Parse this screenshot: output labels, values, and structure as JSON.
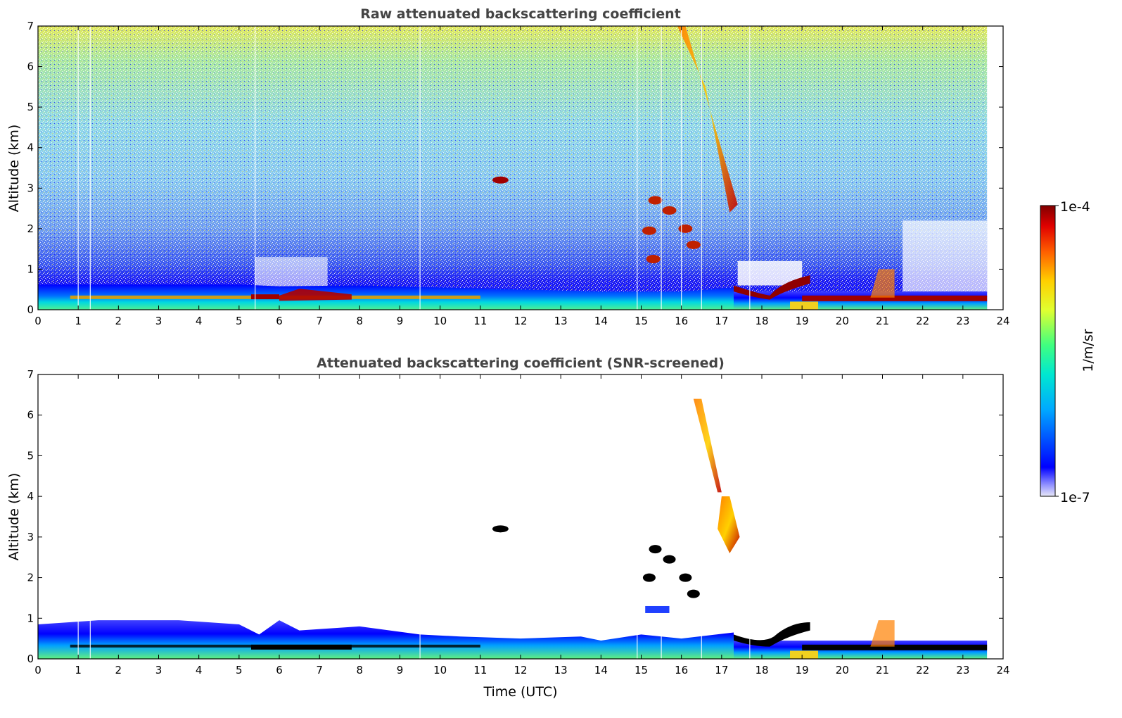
{
  "chart_data": [
    {
      "type": "heatmap",
      "title": "Raw attenuated backscattering coefficient",
      "xlabel": "",
      "ylabel": "Altitude (km)",
      "xlim": [
        0,
        24
      ],
      "ylim": [
        0,
        7
      ],
      "x_ticks": [
        "0",
        "1",
        "2",
        "3",
        "4",
        "5",
        "6",
        "7",
        "8",
        "9",
        "10",
        "11",
        "12",
        "13",
        "14",
        "15",
        "16",
        "17",
        "18",
        "19",
        "20",
        "21",
        "22",
        "23",
        "24"
      ],
      "y_ticks": [
        "0",
        "1",
        "2",
        "3",
        "4",
        "5",
        "6",
        "7"
      ],
      "data_end_time": 23.6,
      "features": [
        {
          "name": "aerosol layer top",
          "t_start": 0,
          "t_end": 17.3,
          "altitude_km": 0.6
        },
        {
          "name": "near-surface strong layer",
          "t_start": 0.8,
          "t_end": 11,
          "altitude_km": 0.3
        },
        {
          "name": "residual layer",
          "t_start": 6.5,
          "t_end": 7.8,
          "altitude_km": 0.4
        },
        {
          "name": "elevated cloud",
          "t_start": 11.3,
          "t_end": 11.7,
          "altitude_km": 3.2
        },
        {
          "name": "falling ice/cirrus streak",
          "t_start": 15.9,
          "t_end": 17.4,
          "altitude_top_km": 7.0,
          "altitude_bottom_km": 2.4
        },
        {
          "name": "mid-level cloud fragments",
          "t_start": 15.0,
          "t_end": 16.4,
          "altitude_km": 2.0
        },
        {
          "name": "boundary layer cloud",
          "t_start": 17.3,
          "t_end": 19.2,
          "altitude_km": 0.5
        },
        {
          "name": "low cloud layer",
          "t_start": 19.0,
          "t_end": 23.6,
          "altitude_km": 0.3
        }
      ]
    },
    {
      "type": "heatmap",
      "title": "Attenuated backscattering coefficient (SNR-screened)",
      "xlabel": "Time (UTC)",
      "ylabel": "Altitude (km)",
      "xlim": [
        0,
        24
      ],
      "ylim": [
        0,
        7
      ],
      "x_ticks": [
        "0",
        "1",
        "2",
        "3",
        "4",
        "5",
        "6",
        "7",
        "8",
        "9",
        "10",
        "11",
        "12",
        "13",
        "14",
        "15",
        "16",
        "17",
        "18",
        "19",
        "20",
        "21",
        "22",
        "23",
        "24"
      ],
      "y_ticks": [
        "0",
        "1",
        "2",
        "3",
        "4",
        "5",
        "6",
        "7"
      ],
      "data_end_time": 23.6,
      "features": [
        {
          "name": "screened aerosol layer",
          "t_start": 0,
          "t_end": 17.3,
          "altitude_km": 0.9
        },
        {
          "name": "elevated cloud",
          "t_start": 11.3,
          "t_end": 11.7,
          "altitude_km": 3.2
        },
        {
          "name": "falling ice/cirrus streak",
          "t_start": 16.3,
          "t_end": 17.4,
          "altitude_top_km": 6.4,
          "altitude_bottom_km": 2.6
        },
        {
          "name": "low cloud layer",
          "t_start": 19.0,
          "t_end": 23.6,
          "altitude_km": 0.3
        }
      ]
    }
  ],
  "colorbar": {
    "max_label": "1e-4",
    "min_label": "1e-7",
    "unit_label": "1/m/sr",
    "scale": "log",
    "colors": [
      "#e8e8f8",
      "#0000ff",
      "#00c8ff",
      "#00ff80",
      "#ffff00",
      "#ff8000",
      "#ff0000",
      "#800000"
    ]
  }
}
